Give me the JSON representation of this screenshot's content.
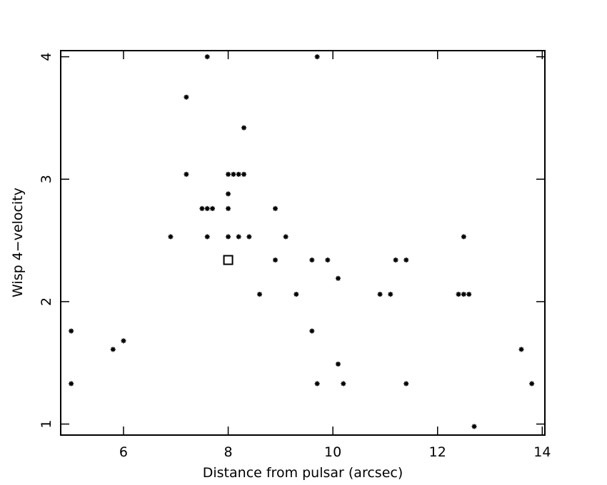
{
  "chart_data": {
    "type": "scatter",
    "xlabel": "Distance from pulsar (arcsec)",
    "ylabel": "Wisp 4−velocity",
    "xlim": [
      4.8,
      14.05
    ],
    "ylim": [
      0.91,
      4.05
    ],
    "xticks": [
      6,
      8,
      10,
      12,
      14
    ],
    "yticks": [
      1,
      2,
      3,
      4
    ],
    "series": [
      {
        "color": "#000000",
        "marker": "star",
        "x": [
          7.6,
          9.7,
          7.2,
          8.3,
          7.2,
          8.0,
          8.1,
          8.2,
          8.3,
          8.0,
          7.5,
          7.6,
          7.7,
          8.0,
          8.9,
          6.9,
          7.6,
          8.0,
          8.2,
          8.4,
          9.1,
          12.5,
          8.9,
          9.6,
          9.9,
          11.2,
          11.4,
          10.1,
          8.6,
          9.3,
          10.9,
          11.1,
          12.4,
          12.5,
          12.6,
          5.0,
          9.6,
          6.0,
          5.8,
          13.6,
          10.1,
          5.0,
          9.7,
          10.2,
          11.4,
          13.8,
          12.7
        ],
        "values": [
          4.0,
          4.0,
          3.67,
          3.42,
          3.04,
          3.04,
          3.04,
          3.04,
          3.04,
          2.88,
          2.76,
          2.76,
          2.76,
          2.76,
          2.76,
          2.53,
          2.53,
          2.53,
          2.53,
          2.53,
          2.53,
          2.53,
          2.34,
          2.34,
          2.34,
          2.34,
          2.34,
          2.19,
          2.06,
          2.06,
          2.06,
          2.06,
          2.06,
          2.06,
          2.06,
          1.76,
          1.76,
          1.68,
          1.61,
          1.61,
          1.49,
          1.33,
          1.33,
          1.33,
          1.33,
          1.33,
          0.98
        ]
      },
      {
        "color": "#000000",
        "marker": "square",
        "x": [
          8.0
        ],
        "values": [
          2.34
        ]
      }
    ]
  }
}
